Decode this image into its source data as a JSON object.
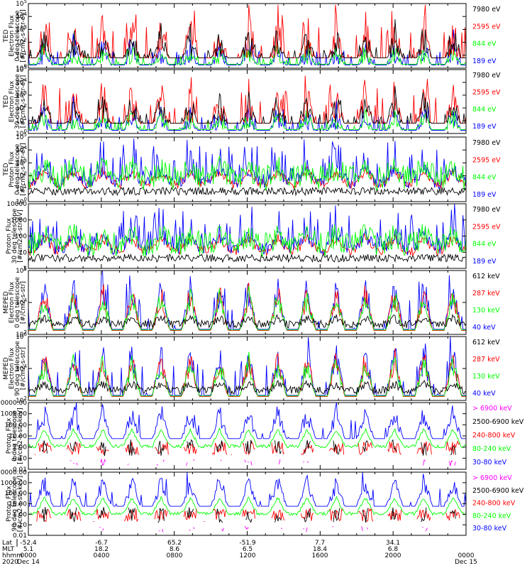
{
  "colors": {
    "black": "#000000",
    "red": "#ff0000",
    "green": "#00ff00",
    "blue": "#0000ff",
    "magenta": "#ff00ff"
  },
  "chart_data": [
    {
      "type": "line",
      "panel": 1,
      "ylabel_lines": [
        "TED",
        "Electron Flux",
        "0 deg telescope",
        "[#/cm2-s-str-eV]"
      ],
      "yscale": "log",
      "ylim": [
        1.0,
        100000.0
      ],
      "yticks": [
        "10^0",
        "10^1",
        "10^2",
        "10^3",
        "10^4",
        "10^5"
      ],
      "series": [
        {
          "name": "7980 eV",
          "color": "black"
        },
        {
          "name": "2595 eV",
          "color": "red"
        },
        {
          "name": "844 eV",
          "color": "green"
        },
        {
          "name": "189 eV",
          "color": "blue"
        }
      ]
    },
    {
      "type": "line",
      "panel": 2,
      "ylabel_lines": [
        "TED",
        "Electron Flux",
        "30 deg telescope",
        "[#/cm2-s-str-eV]"
      ],
      "yscale": "log",
      "ylim": [
        1.0,
        100000.0
      ],
      "yticks": [
        "10^0",
        "10^1",
        "10^2",
        "10^3",
        "10^4",
        "10^5"
      ],
      "series": [
        {
          "name": "7980 eV",
          "color": "black"
        },
        {
          "name": "2595 eV",
          "color": "red"
        },
        {
          "name": "844 eV",
          "color": "green"
        },
        {
          "name": "189 eV",
          "color": "blue"
        }
      ]
    },
    {
      "type": "line",
      "panel": 3,
      "ylabel_lines": [
        "TED",
        "Proton Flux",
        "0 deg telescope",
        "[#/cm2-s-str-eV]"
      ],
      "yscale": "log",
      "ylim": [
        1.0,
        100000.0
      ],
      "yticks": [
        "10^0",
        "10^1",
        "10^2",
        "10^3",
        "10^4",
        "10^5"
      ],
      "series": [
        {
          "name": "7980 eV",
          "color": "black"
        },
        {
          "name": "2595 eV",
          "color": "red"
        },
        {
          "name": "844 eV",
          "color": "green"
        },
        {
          "name": "189 eV",
          "color": "blue"
        }
      ]
    },
    {
      "type": "line",
      "panel": 4,
      "ylabel_lines": [
        "Proton Flux",
        "30 deg telescope",
        "[#/cm2-s-str-eV]"
      ],
      "yscale": "log",
      "ylim": [
        1,
        10000
      ],
      "yticks": [
        "1",
        "10",
        "100",
        "1000",
        "10000"
      ],
      "series": [
        {
          "name": "7980 eV",
          "color": "black"
        },
        {
          "name": "2595 eV",
          "color": "red"
        },
        {
          "name": "844 eV",
          "color": "green"
        },
        {
          "name": "189 eV",
          "color": "blue"
        }
      ]
    },
    {
      "type": "line",
      "panel": 5,
      "ylabel_lines": [
        "MEPED",
        "Electron Flux",
        "0 deg telescope",
        "[#/cm2-s-str]"
      ],
      "yscale": "log",
      "ylim": [
        10.0,
        10000000.0
      ],
      "yticks": [
        "10^2",
        "10^4",
        "10^6"
      ],
      "series": [
        {
          "name": "612 keV",
          "color": "black"
        },
        {
          "name": "287 keV",
          "color": "red"
        },
        {
          "name": "130 keV",
          "color": "green"
        },
        {
          "name": "40 keV",
          "color": "blue"
        }
      ]
    },
    {
      "type": "line",
      "panel": 6,
      "ylabel_lines": [
        "MEPED",
        "Electron Flux",
        "90 deg telescope",
        "[#/cm2-s-str]"
      ],
      "yscale": "log",
      "ylim": [
        10.0,
        10000000.0
      ],
      "yticks": [
        "10^2",
        "10^4",
        "10^6"
      ],
      "series": [
        {
          "name": "612 keV",
          "color": "black"
        },
        {
          "name": "287 keV",
          "color": "red"
        },
        {
          "name": "130 keV",
          "color": "green"
        },
        {
          "name": "40 keV",
          "color": "blue"
        }
      ]
    },
    {
      "type": "line",
      "panel": 7,
      "ylabel_lines": [
        "Proton Flux",
        "0 deg telescope",
        "[#/cm2-s-str-keV]"
      ],
      "yscale": "log",
      "ylim": [
        0.01,
        10000
      ],
      "yticks": [
        "0.01",
        "0.10",
        "1.00",
        "10.00",
        "100.00",
        "1000.00",
        "10000.00"
      ],
      "series": [
        {
          "name": "> 6900 keV",
          "color": "magenta"
        },
        {
          "name": "2500-6900 keV",
          "color": "black"
        },
        {
          "name": "240-800 keV",
          "color": "red"
        },
        {
          "name": "80-240 keV",
          "color": "green"
        },
        {
          "name": "30-80 keV",
          "color": "blue"
        }
      ]
    },
    {
      "type": "line",
      "panel": 8,
      "ylabel_lines": [
        "Proton Flux",
        "90 deg telescope",
        "[#/cm2-s-str-keV]"
      ],
      "yscale": "log",
      "ylim": [
        0.01,
        10000
      ],
      "yticks": [
        "0.01",
        "0.10",
        "1.00",
        "10.00",
        "100.00",
        "1000.00",
        "10000.00"
      ],
      "series": [
        {
          "name": "> 6900 keV",
          "color": "magenta"
        },
        {
          "name": "2500-6900 keV",
          "color": "black"
        },
        {
          "name": "240-800 keV",
          "color": "red"
        },
        {
          "name": "80-240 keV",
          "color": "green"
        },
        {
          "name": "30-80 keV",
          "color": "blue"
        }
      ]
    }
  ],
  "x_axis": {
    "row_labels": [
      "Lat",
      "MLT",
      "hhmm",
      "2020"
    ],
    "ticks": [
      {
        "lat": "-52.4",
        "mlt": "5.1",
        "hhmm": "0000",
        "date": "Dec 14"
      },
      {
        "lat": "-6.7",
        "mlt": "18.2",
        "hhmm": "0400",
        "date": ""
      },
      {
        "lat": "65.2",
        "mlt": "8.6",
        "hhmm": "0800",
        "date": ""
      },
      {
        "lat": "-51.9",
        "mlt": "6.5",
        "hhmm": "1200",
        "date": ""
      },
      {
        "lat": "7.7",
        "mlt": "18.4",
        "hhmm": "1600",
        "date": ""
      },
      {
        "lat": "34.1",
        "mlt": "6.8",
        "hhmm": "2000",
        "date": ""
      },
      {
        "lat": "",
        "mlt": "",
        "hhmm": "0000",
        "date": "Dec 15"
      }
    ]
  }
}
